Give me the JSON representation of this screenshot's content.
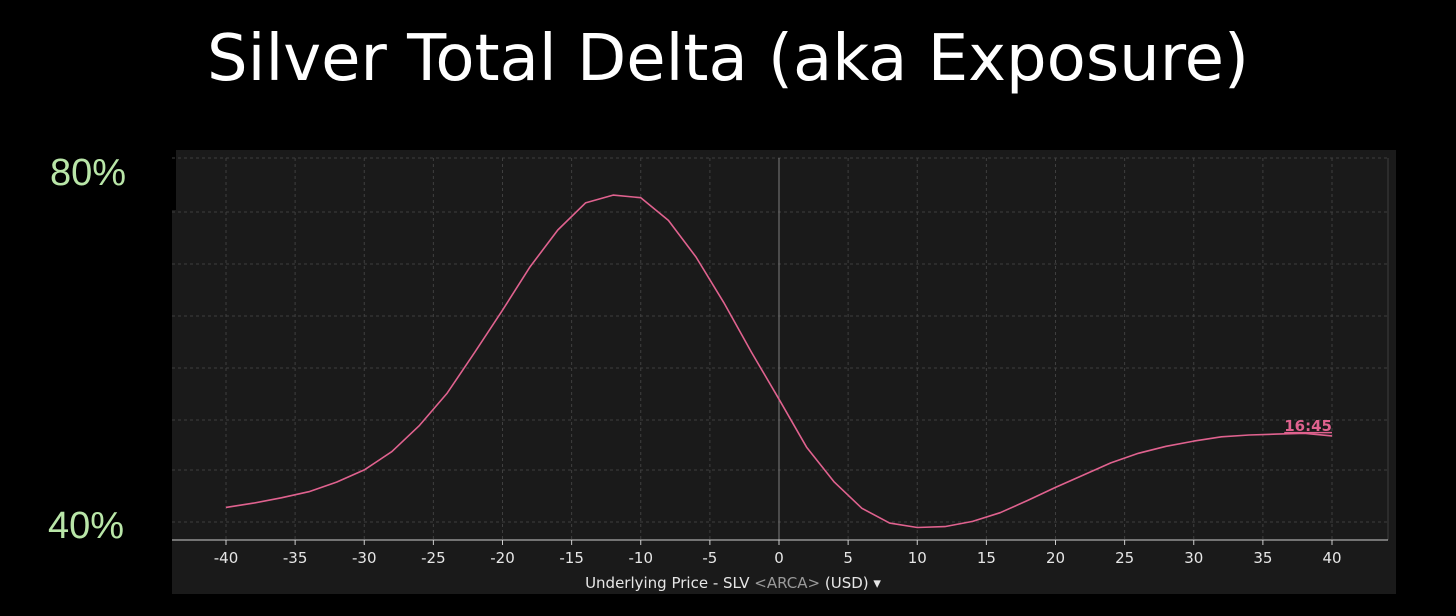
{
  "chart_data": {
    "type": "line",
    "title": "Silver Total Delta (aka Exposure)",
    "xlabel_prefix": "Underlying Price - SLV ",
    "xlabel_exchange": "<ARCA>",
    "xlabel_suffix": " (USD) ",
    "xlabel_dropdown": "▾",
    "x_ticks": [
      -40,
      -35,
      -30,
      -25,
      -20,
      -15,
      -10,
      -5,
      0,
      5,
      10,
      15,
      20,
      25,
      30,
      35,
      40
    ],
    "xlim": [
      -40,
      40
    ],
    "y_tick_labels": [
      "80%",
      "40%"
    ],
    "ylim": [
      40,
      80
    ],
    "grid": true,
    "series": [
      {
        "name": "16:45",
        "color": "#e0628f",
        "x": [
          -40,
          -38,
          -36,
          -34,
          -32,
          -30,
          -28,
          -26,
          -24,
          -22,
          -20,
          -18,
          -16,
          -14,
          -12,
          -10,
          -8,
          -6,
          -4,
          -2,
          0,
          2,
          4,
          6,
          8,
          10,
          12,
          14,
          16,
          18,
          20,
          22,
          24,
          26,
          28,
          30,
          32,
          34,
          36,
          38,
          40
        ],
        "y": [
          41.9,
          42.4,
          43.0,
          43.7,
          44.8,
          46.2,
          48.3,
          51.3,
          55.0,
          59.7,
          64.5,
          69.5,
          73.7,
          76.8,
          77.7,
          77.4,
          74.8,
          70.6,
          65.4,
          59.7,
          54.3,
          48.8,
          44.8,
          41.8,
          40.1,
          39.6,
          39.7,
          40.3,
          41.3,
          42.7,
          44.2,
          45.6,
          47.0,
          48.1,
          48.9,
          49.5,
          50.0,
          50.2,
          50.3,
          50.4,
          50.1
        ]
      }
    ]
  }
}
